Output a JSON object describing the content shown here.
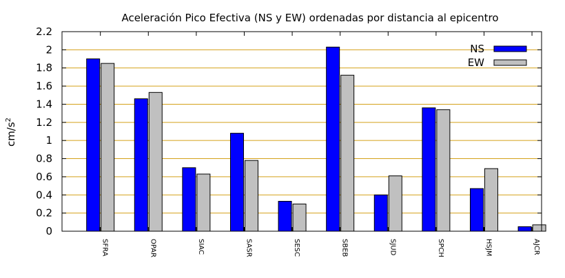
{
  "chart_data": {
    "type": "bar",
    "title": "Aceleración Pico Efectiva (NS y EW) ordenadas por distancia al epicentro",
    "xlabel": "",
    "ylabel": "cm/s",
    "ylabel_sup": "2",
    "ylim": [
      0,
      2.2
    ],
    "yticks": [
      "0",
      "0.2",
      "0.4",
      "0.6",
      "0.8",
      "1",
      "1.2",
      "1.4",
      "1.6",
      "1.8",
      "2",
      "2.2"
    ],
    "grid": true,
    "legend_position": "top-right",
    "categories": [
      "SFRA",
      "OPAR",
      "SIAC",
      "SASR",
      "SESC",
      "SBEB",
      "SJUD",
      "SPCH",
      "HSJM",
      "AJCR"
    ],
    "series": [
      {
        "name": "NS",
        "color": "#0000ff",
        "values": [
          1.9,
          1.46,
          0.7,
          1.08,
          0.33,
          2.03,
          0.4,
          1.36,
          0.47,
          0.05
        ]
      },
      {
        "name": "EW",
        "color": "#c0c0c0",
        "values": [
          1.85,
          1.53,
          0.63,
          0.78,
          0.3,
          1.72,
          0.61,
          1.34,
          0.69,
          0.07
        ]
      }
    ],
    "grid_color": "#d4a017"
  }
}
